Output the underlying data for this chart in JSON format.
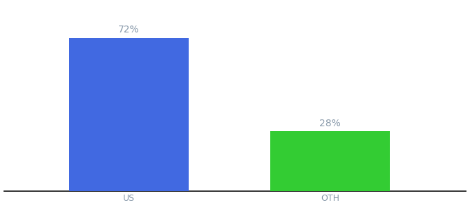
{
  "categories": [
    "US",
    "OTH"
  ],
  "values": [
    72,
    28
  ],
  "bar_colors": [
    "#4169e1",
    "#33cc33"
  ],
  "background_color": "#ffffff",
  "text_color": "#8899aa",
  "label_fontsize": 10,
  "tick_fontsize": 9,
  "ylim": [
    0,
    88
  ],
  "bar_width": 0.22,
  "x_positions": [
    0.28,
    0.65
  ],
  "xlim": [
    0.05,
    0.9
  ],
  "figsize": [
    6.8,
    3.0
  ],
  "dpi": 100
}
